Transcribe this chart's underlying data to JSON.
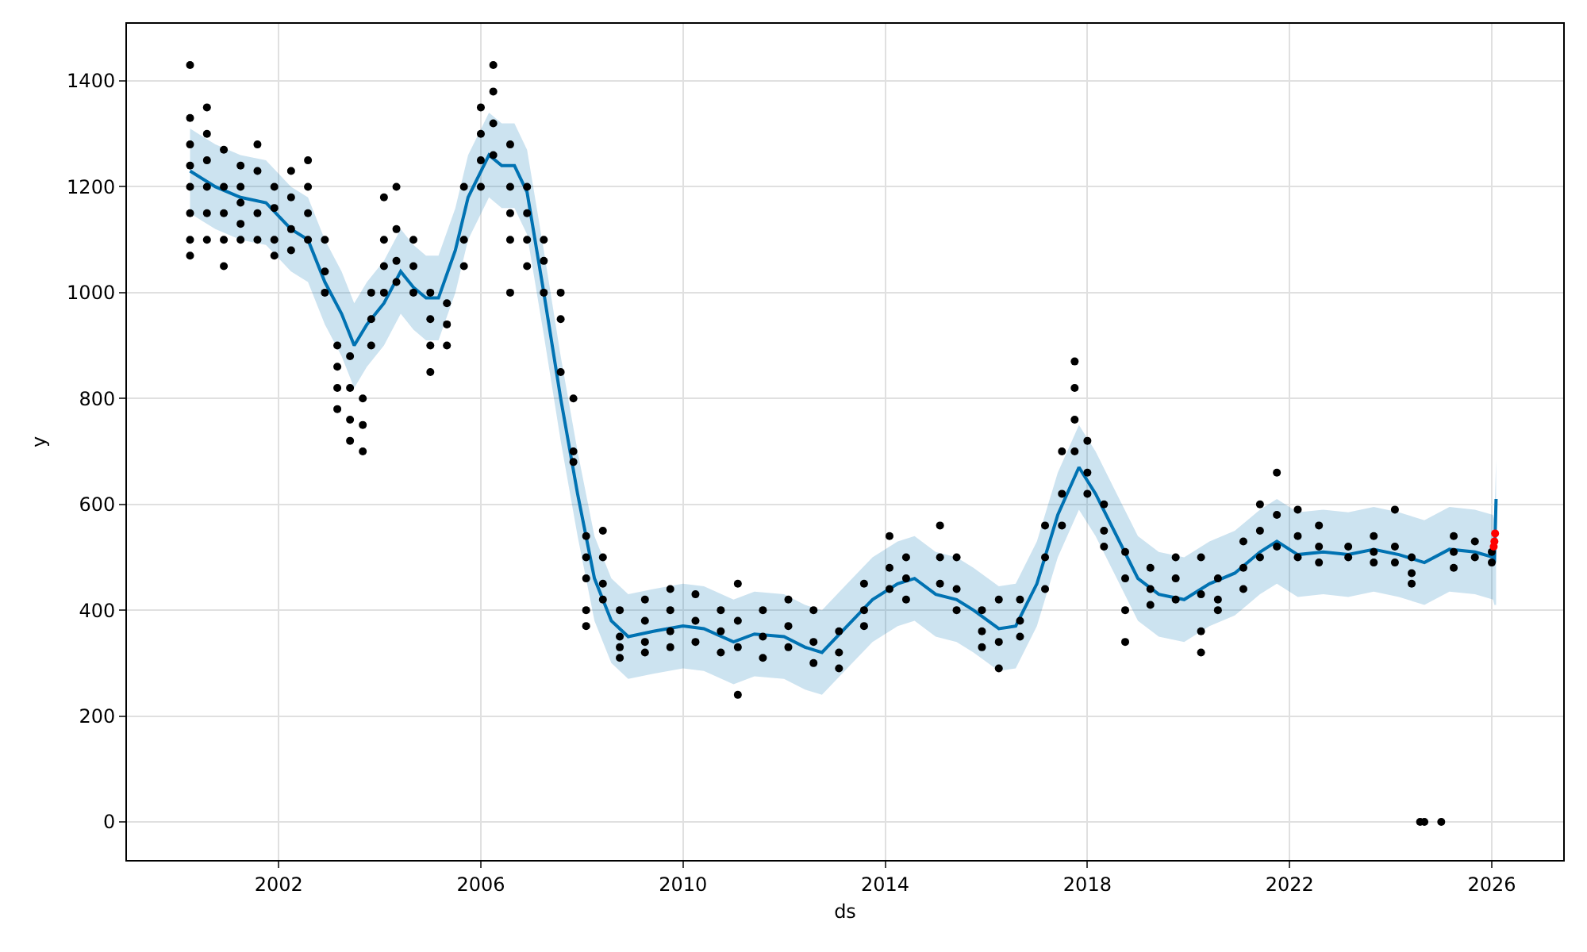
{
  "chart_data": {
    "type": "scatter",
    "xlabel": "ds",
    "ylabel": "y",
    "xlim": [
      "1999-01",
      "2027-06"
    ],
    "xticks": [
      "2002",
      "2006",
      "2010",
      "2014",
      "2018",
      "2022",
      "2026"
    ],
    "ylim": [
      -72,
      1508
    ],
    "yticks": [
      0,
      200,
      400,
      600,
      800,
      1000,
      1200,
      1400
    ],
    "grid": true,
    "marker": "circle",
    "series": [
      {
        "type": "line",
        "color": "#0072b2",
        "marker": "none",
        "line_style": "solid",
        "x": [
          "2000-04",
          "2000-10",
          "2001-04",
          "2001-10",
          "2002-04",
          "2002-08",
          "2002-12",
          "2003-04",
          "2003-07",
          "2003-10",
          "2004-02",
          "2004-06",
          "2004-09",
          "2004-12",
          "2005-03",
          "2005-07",
          "2005-10",
          "2006-03",
          "2006-06",
          "2006-09",
          "2006-12",
          "2007-04",
          "2007-08",
          "2007-12",
          "2008-04",
          "2008-08",
          "2008-12",
          "2009-06",
          "2010-01",
          "2010-06",
          "2011-01",
          "2011-06",
          "2012-01",
          "2012-06",
          "2012-10",
          "2013-04",
          "2013-10",
          "2014-04",
          "2014-08",
          "2015-01",
          "2015-06",
          "2015-10",
          "2016-04",
          "2016-08",
          "2017-01",
          "2017-06",
          "2017-11",
          "2018-03",
          "2018-08",
          "2019-01",
          "2019-06",
          "2019-12",
          "2020-06",
          "2020-12",
          "2021-06",
          "2021-10",
          "2022-03",
          "2022-09",
          "2023-03",
          "2023-09",
          "2024-03",
          "2024-09",
          "2025-03",
          "2025-09",
          "2026-01-10",
          "2026-01-20",
          "2026-02-01"
        ],
        "values": [
          1230,
          1200,
          1180,
          1170,
          1120,
          1100,
          1020,
          960,
          900,
          940,
          980,
          1040,
          1010,
          990,
          990,
          1080,
          1180,
          1260,
          1240,
          1240,
          1190,
          1000,
          800,
          620,
          460,
          380,
          350,
          360,
          370,
          365,
          340,
          355,
          350,
          330,
          320,
          370,
          420,
          450,
          460,
          430,
          420,
          400,
          365,
          370,
          450,
          580,
          670,
          620,
          540,
          460,
          430,
          420,
          450,
          470,
          510,
          530,
          505,
          510,
          505,
          515,
          505,
          490,
          515,
          510,
          500,
          490,
          610
        ],
        "lower": [
          1150,
          1120,
          1100,
          1090,
          1040,
          1020,
          940,
          880,
          820,
          860,
          900,
          960,
          930,
          910,
          910,
          1000,
          1100,
          1180,
          1160,
          1160,
          1110,
          920,
          720,
          540,
          380,
          300,
          270,
          280,
          290,
          285,
          260,
          275,
          270,
          250,
          240,
          290,
          340,
          370,
          380,
          350,
          340,
          320,
          285,
          290,
          370,
          500,
          590,
          540,
          460,
          380,
          350,
          340,
          370,
          390,
          430,
          450,
          425,
          430,
          425,
          435,
          425,
          410,
          435,
          430,
          420,
          410,
          410
        ],
        "upper": [
          1310,
          1280,
          1260,
          1250,
          1200,
          1180,
          1100,
          1040,
          980,
          1020,
          1060,
          1120,
          1090,
          1070,
          1070,
          1160,
          1260,
          1340,
          1320,
          1320,
          1270,
          1080,
          880,
          700,
          540,
          460,
          430,
          440,
          450,
          445,
          420,
          435,
          430,
          410,
          400,
          450,
          500,
          530,
          540,
          510,
          500,
          480,
          445,
          450,
          530,
          660,
          750,
          700,
          620,
          540,
          510,
          500,
          530,
          550,
          590,
          610,
          585,
          590,
          585,
          595,
          585,
          570,
          595,
          590,
          580,
          570,
          685
        ]
      },
      {
        "color": "#000000",
        "x": [
          "2000-04",
          "2000-04",
          "2000-04",
          "2000-04",
          "2000-04",
          "2000-04",
          "2000-04",
          "2000-04",
          "2000-08",
          "2000-08",
          "2000-08",
          "2000-08",
          "2000-08",
          "2000-08",
          "2000-12",
          "2000-12",
          "2000-12",
          "2000-12",
          "2000-12",
          "2001-04",
          "2001-04",
          "2001-04",
          "2001-04",
          "2001-04",
          "2001-08",
          "2001-08",
          "2001-08",
          "2001-08",
          "2001-12",
          "2001-12",
          "2001-12",
          "2001-12",
          "2002-04",
          "2002-04",
          "2002-04",
          "2002-04",
          "2002-08",
          "2002-08",
          "2002-08",
          "2002-08",
          "2002-12",
          "2002-12",
          "2002-12",
          "2003-03",
          "2003-03",
          "2003-03",
          "2003-03",
          "2003-06",
          "2003-06",
          "2003-06",
          "2003-06",
          "2003-09",
          "2003-09",
          "2003-09",
          "2003-11",
          "2003-11",
          "2003-11",
          "2004-02",
          "2004-02",
          "2004-02",
          "2004-02",
          "2004-05",
          "2004-05",
          "2004-05",
          "2004-05",
          "2004-09",
          "2004-09",
          "2004-09",
          "2005-01",
          "2005-01",
          "2005-01",
          "2005-01",
          "2005-05",
          "2005-05",
          "2005-05",
          "2005-09",
          "2005-09",
          "2005-09",
          "2006-01",
          "2006-01",
          "2006-01",
          "2006-01",
          "2006-04",
          "2006-04",
          "2006-04",
          "2006-04",
          "2006-08",
          "2006-08",
          "2006-08",
          "2006-08",
          "2006-08",
          "2006-12",
          "2006-12",
          "2006-12",
          "2006-12",
          "2007-04",
          "2007-04",
          "2007-04",
          "2007-08",
          "2007-08",
          "2007-08",
          "2007-11",
          "2007-11",
          "2007-11",
          "2008-02",
          "2008-02",
          "2008-02",
          "2008-02",
          "2008-02",
          "2008-06",
          "2008-06",
          "2008-06",
          "2008-06",
          "2008-10",
          "2008-10",
          "2008-10",
          "2008-10",
          "2009-04",
          "2009-04",
          "2009-04",
          "2009-04",
          "2009-10",
          "2009-10",
          "2009-10",
          "2009-10",
          "2010-04",
          "2010-04",
          "2010-04",
          "2010-10",
          "2010-10",
          "2010-10",
          "2011-02",
          "2011-02",
          "2011-02",
          "2011-02",
          "2011-08",
          "2011-08",
          "2011-08",
          "2012-02",
          "2012-02",
          "2012-02",
          "2012-08",
          "2012-08",
          "2012-08",
          "2013-02",
          "2013-02",
          "2013-02",
          "2013-08",
          "2013-08",
          "2013-08",
          "2014-02",
          "2014-02",
          "2014-02",
          "2014-06",
          "2014-06",
          "2014-06",
          "2015-02",
          "2015-02",
          "2015-02",
          "2015-06",
          "2015-06",
          "2015-06",
          "2015-12",
          "2015-12",
          "2015-12",
          "2016-04",
          "2016-04",
          "2016-04",
          "2016-09",
          "2016-09",
          "2016-09",
          "2017-03",
          "2017-03",
          "2017-03",
          "2017-07",
          "2017-07",
          "2017-07",
          "2017-10",
          "2017-10",
          "2017-10",
          "2017-10",
          "2018-01",
          "2018-01",
          "2018-01",
          "2018-05",
          "2018-05",
          "2018-05",
          "2018-10",
          "2018-10",
          "2018-10",
          "2018-10",
          "2019-04",
          "2019-04",
          "2019-04",
          "2019-10",
          "2019-10",
          "2019-10",
          "2020-04",
          "2020-04",
          "2020-04",
          "2020-04",
          "2020-08",
          "2020-08",
          "2020-08",
          "2021-02",
          "2021-02",
          "2021-02",
          "2021-06",
          "2021-06",
          "2021-06",
          "2021-10",
          "2021-10",
          "2021-10",
          "2022-03",
          "2022-03",
          "2022-03",
          "2022-08",
          "2022-08",
          "2022-08",
          "2023-03",
          "2023-03",
          "2023-09",
          "2023-09",
          "2023-09",
          "2024-02",
          "2024-02",
          "2024-02",
          "2024-06",
          "2024-06",
          "2024-06",
          "2024-08",
          "2024-09",
          "2025-01",
          "2025-04",
          "2025-04",
          "2025-04",
          "2025-09",
          "2025-09",
          "2026-01",
          "2026-01"
        ],
        "values": [
          1430,
          1330,
          1280,
          1240,
          1200,
          1150,
          1100,
          1070,
          1350,
          1300,
          1250,
          1200,
          1150,
          1100,
          1270,
          1200,
          1150,
          1100,
          1050,
          1240,
          1200,
          1170,
          1130,
          1100,
          1280,
          1230,
          1150,
          1100,
          1200,
          1160,
          1100,
          1070,
          1230,
          1180,
          1120,
          1080,
          1250,
          1200,
          1150,
          1100,
          1100,
          1040,
          1000,
          900,
          860,
          820,
          780,
          880,
          820,
          760,
          720,
          800,
          750,
          700,
          1000,
          950,
          900,
          1180,
          1100,
          1050,
          1000,
          1200,
          1120,
          1060,
          1020,
          1100,
          1050,
          1000,
          1000,
          950,
          900,
          850,
          980,
          940,
          900,
          1200,
          1100,
          1050,
          1350,
          1300,
          1250,
          1200,
          1430,
          1380,
          1320,
          1260,
          1280,
          1200,
          1150,
          1100,
          1000,
          1200,
          1150,
          1100,
          1050,
          1100,
          1060,
          1000,
          1000,
          950,
          850,
          800,
          700,
          680,
          540,
          500,
          460,
          400,
          370,
          550,
          500,
          450,
          420,
          400,
          350,
          330,
          310,
          420,
          380,
          340,
          320,
          440,
          400,
          360,
          330,
          430,
          380,
          340,
          400,
          360,
          320,
          450,
          380,
          330,
          240,
          400,
          350,
          310,
          420,
          370,
          330,
          400,
          340,
          300,
          360,
          320,
          290,
          450,
          400,
          370,
          540,
          480,
          440,
          500,
          460,
          420,
          560,
          500,
          450,
          500,
          440,
          400,
          400,
          360,
          330,
          420,
          340,
          290,
          420,
          380,
          350,
          560,
          500,
          440,
          700,
          620,
          560,
          870,
          820,
          760,
          700,
          720,
          660,
          620,
          600,
          550,
          520,
          510,
          460,
          400,
          340,
          480,
          440,
          410,
          500,
          460,
          420,
          500,
          430,
          360,
          320,
          460,
          420,
          400,
          530,
          480,
          440,
          600,
          550,
          500,
          660,
          580,
          520,
          590,
          540,
          500,
          560,
          520,
          490,
          520,
          500,
          540,
          510,
          490,
          590,
          520,
          490,
          500,
          470,
          450,
          0,
          0,
          0,
          540,
          510,
          480,
          530,
          500,
          510,
          490
        ]
      },
      {
        "color": "#ff0000",
        "x": [
          "2026-01-15",
          "2026-01-20",
          "2026-01-25"
        ],
        "values": [
          520,
          530,
          545
        ]
      }
    ]
  }
}
